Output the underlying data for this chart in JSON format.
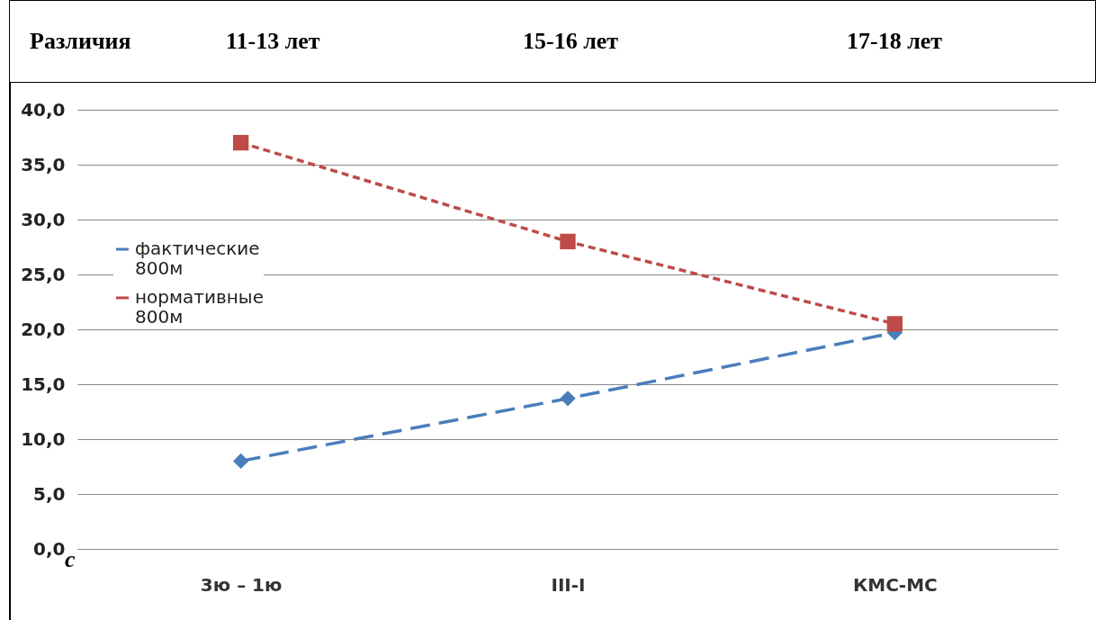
{
  "chart_data": {
    "type": "line",
    "annotations": [
      "Различия",
      "11-13 лет",
      "15-16 лет",
      "17-18 лет",
      "с"
    ],
    "categories": [
      "3ю – 1ю",
      "III-I",
      "КМС-МС"
    ],
    "series": [
      {
        "name": "фактические 800м",
        "color": "#4a7ebb",
        "values": [
          8.0,
          13.7,
          19.7
        ],
        "marker": "diamond",
        "line_style": "dashed"
      },
      {
        "name": "нормативные 800м",
        "color": "#be4b48",
        "values": [
          37.0,
          28.0,
          20.5
        ],
        "marker": "square",
        "line_style": "dotted"
      }
    ],
    "ylim": [
      0,
      40
    ],
    "yticks": [
      {
        "value": 0,
        "label": "0,0"
      },
      {
        "value": 5,
        "label": "5,0"
      },
      {
        "value": 10,
        "label": "10,0"
      },
      {
        "value": 15,
        "label": "15,0"
      },
      {
        "value": 20,
        "label": "20,0"
      },
      {
        "value": 25,
        "label": "25,0"
      },
      {
        "value": 30,
        "label": "30,0"
      },
      {
        "value": 35,
        "label": "35,0"
      },
      {
        "value": 40,
        "label": "40,0"
      }
    ],
    "grid": "y",
    "legend": "left"
  }
}
